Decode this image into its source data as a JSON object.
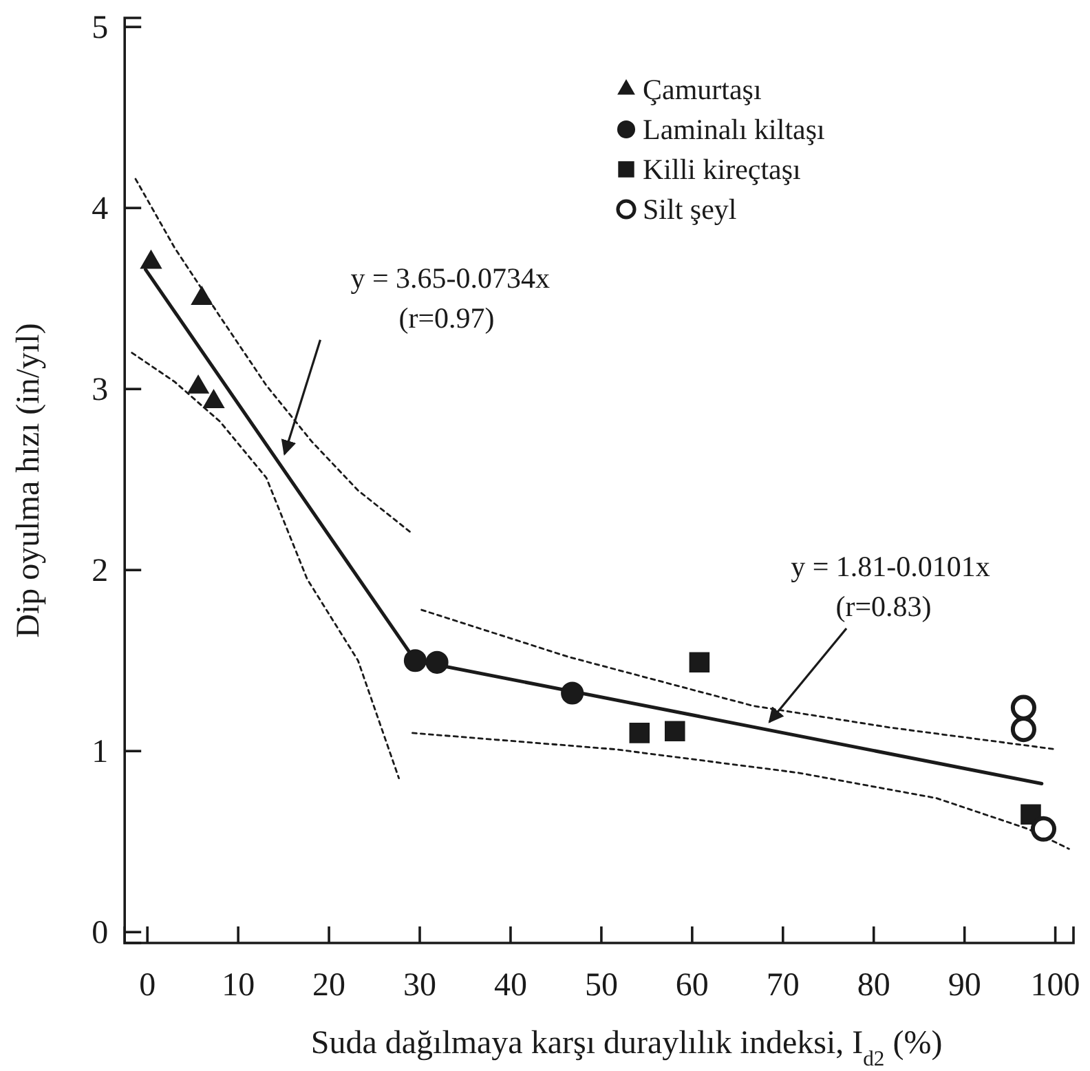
{
  "chart_data": {
    "type": "scatter",
    "xlabel": "Suda dağılmaya karşı duraylılık indeksi, I$_{d2}$ (%)",
    "ylabel": "Dip oyulma hızı (in/yıl)",
    "xlim": [
      -2.5,
      102
    ],
    "ylim": [
      -0.06,
      5.05
    ],
    "xticks": [
      0,
      10,
      20,
      30,
      40,
      50,
      60,
      70,
      80,
      90,
      100
    ],
    "yticks": [
      0,
      1,
      2,
      3,
      4,
      5
    ],
    "grid": false,
    "legend": "top right",
    "series": [
      {
        "name": "Çamurtaşı",
        "marker": "triangle",
        "color": "#1a1a1a",
        "x": [
          0.4,
          6.0,
          5.6,
          7.3
        ],
        "values": [
          3.7,
          3.5,
          3.01,
          2.93
        ]
      },
      {
        "name": "Laminalı kiltaşı",
        "marker": "circle",
        "color": "#1a1a1a",
        "x": [
          29.5,
          31.9,
          46.8
        ],
        "values": [
          1.5,
          1.49,
          1.32
        ]
      },
      {
        "name": "Killi kireçtaşı",
        "marker": "square",
        "color": "#1a1a1a",
        "x": [
          60.8,
          54.2,
          58.1,
          97.3
        ],
        "values": [
          1.49,
          1.1,
          1.11,
          0.65
        ]
      },
      {
        "name": "Silt şeyl",
        "marker": "circle",
        "color": "#ffffff",
        "x": [
          96.5,
          96.5,
          98.7
        ],
        "values": [
          1.24,
          1.12,
          0.57
        ]
      },
      {
        "type": "line",
        "color": "#1a1a1a",
        "line_style": "solid",
        "x": [
          -0.2,
          29.5
        ],
        "values": [
          3.66,
          1.5
        ]
      },
      {
        "type": "line",
        "color": "#1a1a1a",
        "line_style": "solid",
        "x": [
          29.5,
          98.5
        ],
        "values": [
          1.5,
          0.82
        ]
      },
      {
        "type": "line",
        "color": "#1a1a1a",
        "line_style": "dotted",
        "x": [
          -1.3,
          3.0,
          8.0,
          13.1,
          18.1,
          23.2,
          29.2
        ],
        "values": [
          4.16,
          3.78,
          3.4,
          3.02,
          2.71,
          2.44,
          2.2
        ]
      },
      {
        "type": "line",
        "color": "#1a1a1a",
        "line_style": "dotted",
        "x": [
          -1.7,
          3.0,
          8.0,
          13.1,
          17.6,
          23.2,
          27.7
        ],
        "values": [
          3.2,
          3.04,
          2.82,
          2.51,
          1.95,
          1.5,
          0.85
        ]
      },
      {
        "type": "line",
        "color": "#1a1a1a",
        "line_style": "dotted",
        "x": [
          30.2,
          46.4,
          66.7,
          81.8,
          100
        ],
        "values": [
          1.78,
          1.52,
          1.25,
          1.13,
          1.01
        ]
      },
      {
        "type": "line",
        "color": "#1a1a1a",
        "line_style": "dotted",
        "x": [
          29.2,
          51.5,
          71.7,
          86.9,
          97.0,
          101.5
        ],
        "values": [
          1.1,
          1.01,
          0.88,
          0.74,
          0.57,
          0.46
        ]
      }
    ],
    "annotations": [
      {
        "text": "y = 3.65-0.0734x\n(r=0.97)",
        "x": 14.8,
        "y": 2.61
      },
      {
        "text": "y = 1.81-0.0101x\n(r=0.83)",
        "x": 68.2,
        "y": 1.13
      }
    ]
  }
}
